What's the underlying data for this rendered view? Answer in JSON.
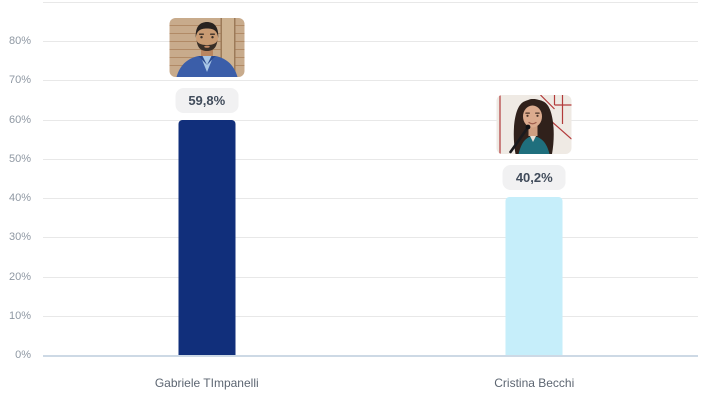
{
  "chart_data": {
    "type": "bar",
    "title": "",
    "xlabel": "",
    "ylabel": "",
    "categories": [
      "Gabriele TImpanelli",
      "Cristina Becchi"
    ],
    "values": [
      59.8,
      40.2
    ],
    "value_labels": [
      "59,8%",
      "40,2%"
    ],
    "bar_colors": [
      "#112f7b",
      "#c6eefa"
    ],
    "photos": [
      "man with dark beard in blue blazer, brick background",
      "woman with long dark hair in teal jacket, microphone"
    ],
    "ylim": [
      0,
      90
    ],
    "yticks": [
      0,
      10,
      20,
      30,
      40,
      50,
      60,
      70,
      80,
      90
    ],
    "ytick_labels": [
      "0%",
      "10%",
      "20%",
      "30%",
      "40%",
      "50%",
      "60%",
      "70%",
      "80%",
      ""
    ],
    "grid": true,
    "legend": false
  },
  "colors": {
    "background": "#ffffff",
    "grid_line": "#e8e8e8",
    "baseline": "#cdd9e5",
    "tick_label": "#8f98a3",
    "category_label": "#5d6672",
    "value_pill_bg": "#f1f1f2",
    "value_pill_text": "#414c5b"
  }
}
